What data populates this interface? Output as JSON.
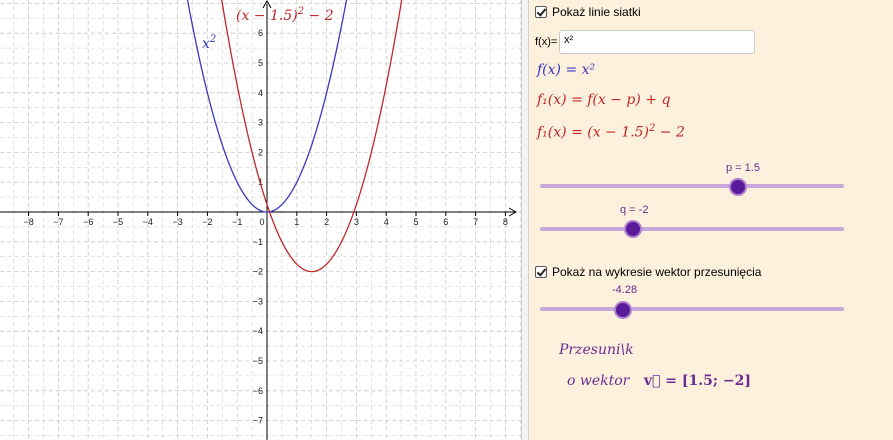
{
  "graph": {
    "x_ticks": [
      "−8",
      "−7",
      "−6",
      "−5",
      "−4",
      "−3",
      "−2",
      "−1",
      "0",
      "1",
      "2",
      "3",
      "4",
      "5",
      "6",
      "7",
      "8"
    ],
    "y_ticks_pos": [
      "1",
      "2",
      "3",
      "4",
      "5",
      "6"
    ],
    "y_ticks_neg": [
      "−1",
      "−2",
      "−3",
      "−4",
      "−5",
      "−6",
      "−7"
    ],
    "label_blue": "x²",
    "label_red_base": "(x − 1.5)",
    "label_red_exp": "2",
    "label_red_tail": " − 2",
    "colors": {
      "blue": "#3838c0",
      "red": "#c02828",
      "grid": "#c8c8c8"
    }
  },
  "panel": {
    "grid_checkbox": {
      "label": "Pokaż linie siatki",
      "checked": true
    },
    "fx_label": "f(x)=",
    "fx_value": "x²",
    "formula1": "f(x) = x²",
    "formula2": "f₁(x) = f(x − p) + q",
    "formula3_base": "f₁(x) = (x − 1.5)",
    "formula3_exp": "2",
    "formula3_tail": " − 2",
    "slider_p": {
      "label": "p = 1.5",
      "value": 1.5
    },
    "slider_q": {
      "label": "q = -2",
      "value": -2
    },
    "vector_checkbox": {
      "label": "Pokaż na wykresie wektor przesunięcia",
      "checked": true
    },
    "slider_t": {
      "label": "-4.28",
      "value": -4.28
    },
    "shift_text": "Przesuni\\k",
    "vector_prefix": "o wektor",
    "vector_formula": "v⃗ = [1.5; −2]"
  }
}
